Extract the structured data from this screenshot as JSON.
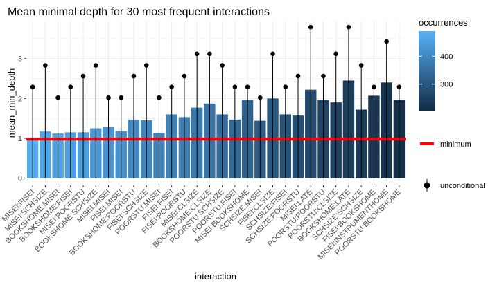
{
  "chart_data": {
    "type": "bar",
    "title": "Mean minimal depth for 30 most frequent interactions",
    "xlabel": "interaction",
    "ylabel": "mean_min_depth",
    "ylim": [
      -0.18,
      3.95
    ],
    "yticks": [
      0,
      1,
      2,
      3
    ],
    "grid": true,
    "legend_position": "right",
    "minimum_line": 0.98,
    "categories": [
      "MISEI:FISEI",
      "MISEI:SCHSIZE",
      "BOOKSHOME:MISEI",
      "BOOKSHOME:FISEI",
      "MISEI:POORSTU",
      "BOOKSHOME:SCHSIZE",
      "MISEI:MISEI",
      "FISEI:MISEI",
      "BOOKSHOME:POORSTU",
      "FISEI:SCHSIZE",
      "POORSTU:MISEI",
      "FISEI:FISEI",
      "FISEI:POORSTU",
      "MISEI:CLSIZE",
      "BOOKSHOME:CLSIZE",
      "POORSTU:SCHSIZE",
      "POORSTU:FISEI",
      "MISEI:BOOKSHOME",
      "SCHSIZE:MISEI",
      "FISEI:CLSIZE",
      "SCHSIZE:FISEI",
      "SCHSIZE:POORSTU",
      "MISEI:LATE",
      "POORSTU:POORSTU",
      "POORSTU:CLSIZE",
      "BOOKSHOME:LATE",
      "SCHSIZE:SCHSIZE",
      "FISEI:BOOKSHOME",
      "MISEI:INSTRUMENTHOME",
      "POORSTU:BOOKSHOME"
    ],
    "series": [
      {
        "name": "mean_min_depth",
        "values": [
          1.0,
          1.17,
          1.12,
          1.15,
          1.15,
          1.25,
          1.28,
          1.18,
          1.47,
          1.45,
          1.14,
          1.6,
          1.53,
          1.77,
          1.87,
          1.6,
          1.47,
          1.96,
          1.44,
          2.0,
          1.6,
          1.57,
          2.22,
          1.96,
          1.9,
          2.45,
          1.72,
          2.07,
          2.4,
          1.96
        ]
      },
      {
        "name": "unconditional",
        "values": [
          2.29,
          2.83,
          2.02,
          2.29,
          2.56,
          2.83,
          2.02,
          2.02,
          2.56,
          2.83,
          2.02,
          2.29,
          2.56,
          3.12,
          3.12,
          2.83,
          2.29,
          2.29,
          2.02,
          3.12,
          2.29,
          2.56,
          3.79,
          2.56,
          3.12,
          3.79,
          2.83,
          2.29,
          3.43,
          2.29
        ]
      },
      {
        "name": "occurrences",
        "values": [
          480,
          465,
          455,
          450,
          445,
          440,
          430,
          420,
          410,
          400,
          395,
          390,
          380,
          370,
          360,
          345,
          335,
          325,
          310,
          300,
          290,
          280,
          270,
          260,
          255,
          245,
          240,
          230,
          225,
          215
        ]
      }
    ],
    "color_scale": {
      "title": "occurrences",
      "low": "#132b43",
      "high": "#56b1f7",
      "min": 205,
      "max": 490,
      "ticks": [
        300,
        400
      ]
    },
    "legend": {
      "minimum_label": "minimum",
      "minimum_color": "#ff0000",
      "unconditional_label": "unconditional"
    }
  }
}
